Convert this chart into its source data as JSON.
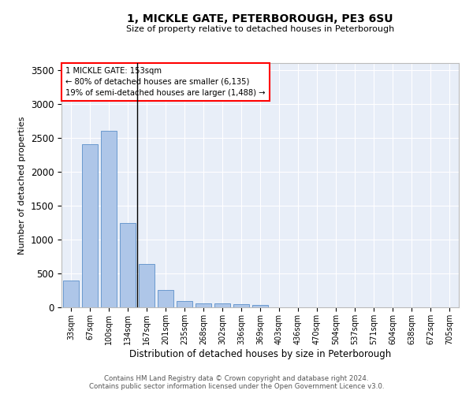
{
  "title": "1, MICKLE GATE, PETERBOROUGH, PE3 6SU",
  "subtitle": "Size of property relative to detached houses in Peterborough",
  "xlabel": "Distribution of detached houses by size in Peterborough",
  "ylabel": "Number of detached properties",
  "categories": [
    "33sqm",
    "67sqm",
    "100sqm",
    "134sqm",
    "167sqm",
    "201sqm",
    "235sqm",
    "268sqm",
    "302sqm",
    "336sqm",
    "369sqm",
    "403sqm",
    "436sqm",
    "470sqm",
    "504sqm",
    "537sqm",
    "571sqm",
    "604sqm",
    "638sqm",
    "672sqm",
    "705sqm"
  ],
  "values": [
    390,
    2400,
    2600,
    1240,
    640,
    260,
    90,
    60,
    60,
    45,
    30,
    0,
    0,
    0,
    0,
    0,
    0,
    0,
    0,
    0,
    0
  ],
  "bar_color": "#aec6e8",
  "bar_edge_color": "#5b8fc9",
  "annotation_text_line1": "1 MICKLE GATE: 153sqm",
  "annotation_text_line2": "← 80% of detached houses are smaller (6,135)",
  "annotation_text_line3": "19% of semi-detached houses are larger (1,488) →",
  "ylim": [
    0,
    3600
  ],
  "yticks": [
    0,
    500,
    1000,
    1500,
    2000,
    2500,
    3000,
    3500
  ],
  "bg_color": "#e8eef8",
  "grid_color": "#ffffff",
  "footer_line1": "Contains HM Land Registry data © Crown copyright and database right 2024.",
  "footer_line2": "Contains public sector information licensed under the Open Government Licence v3.0."
}
